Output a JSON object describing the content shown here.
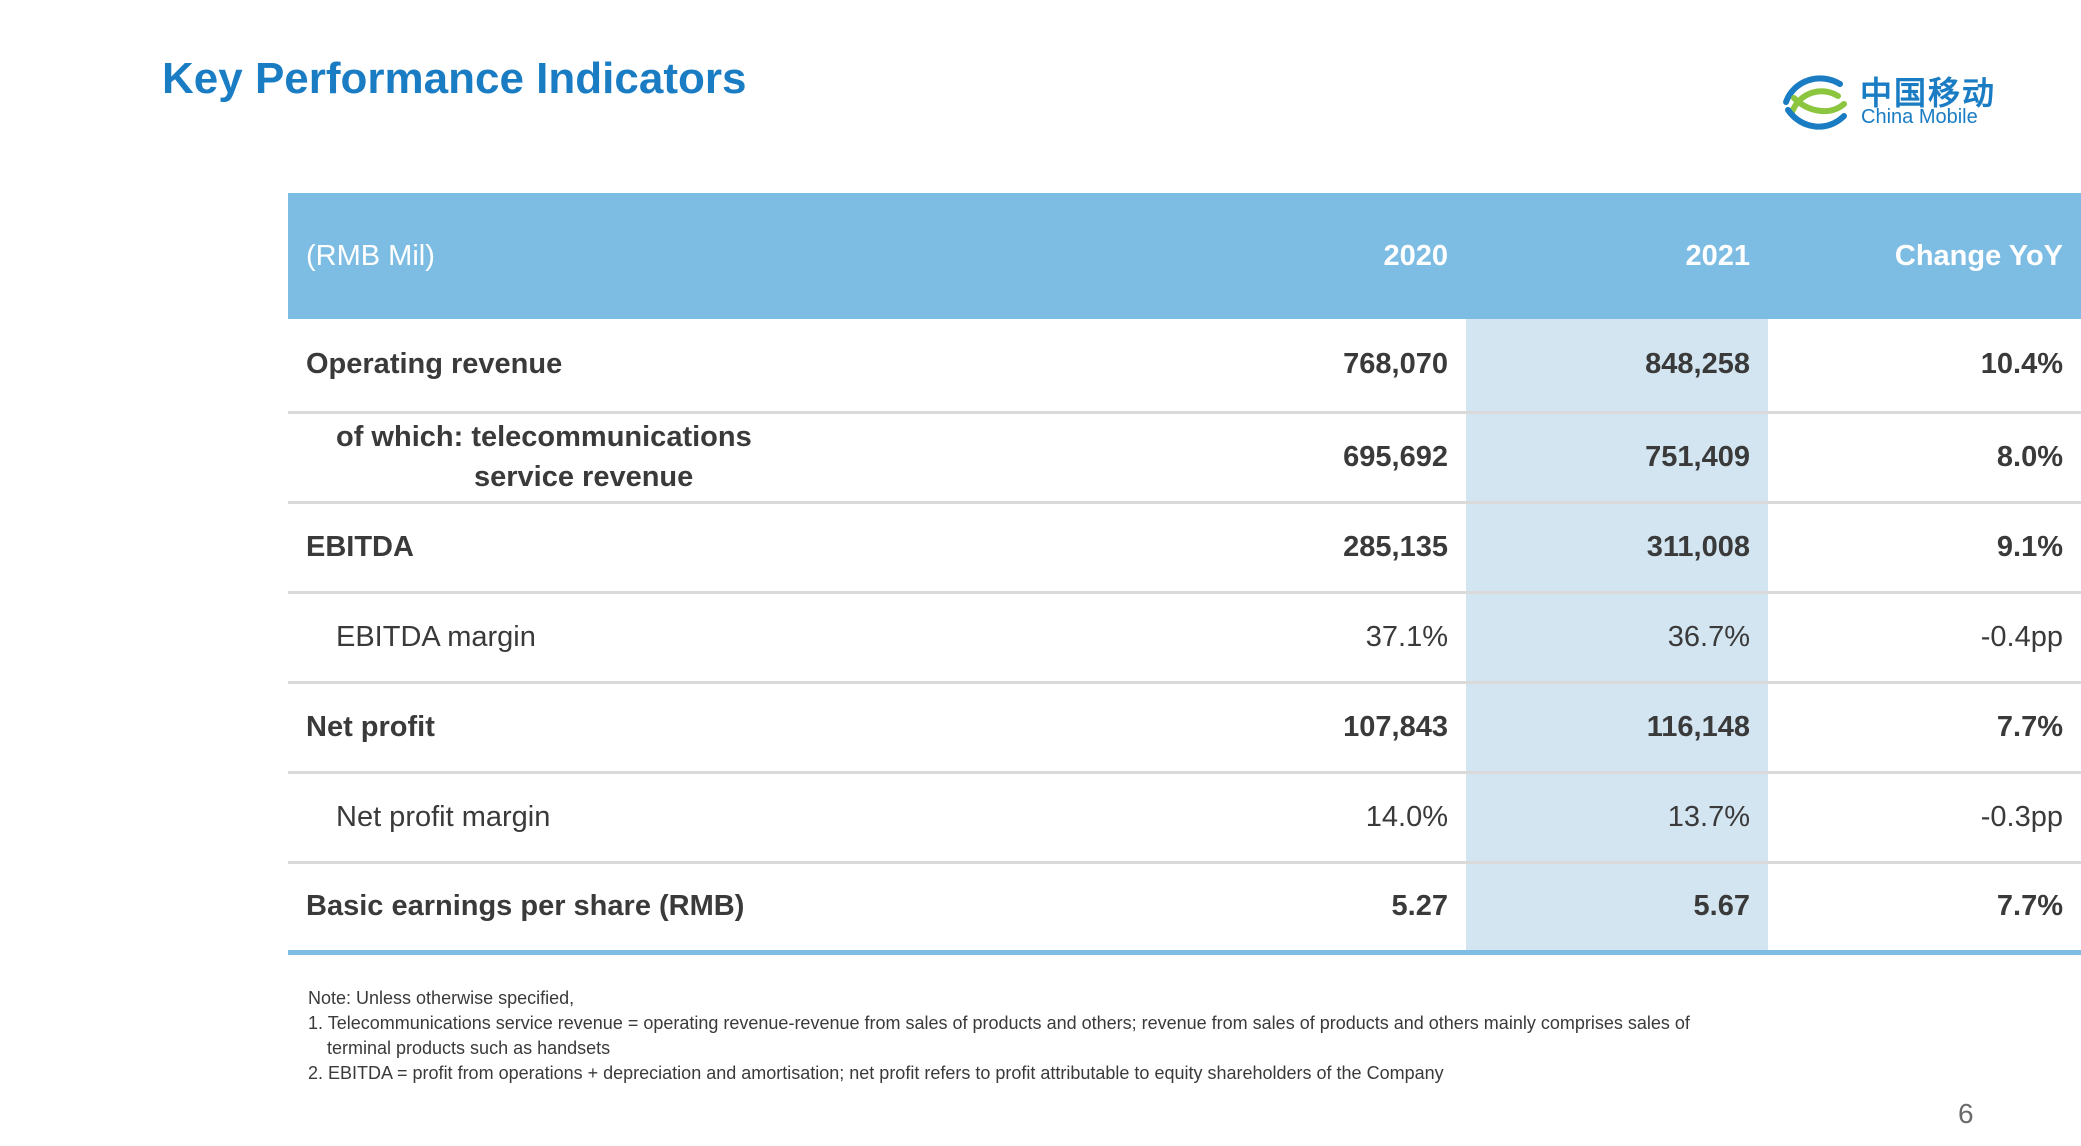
{
  "slide": {
    "title": "Key Performance Indicators",
    "page_number": "6"
  },
  "logo": {
    "chinese": "中国移动",
    "english": "China Mobile"
  },
  "table": {
    "headers": [
      "(RMB Mil)",
      "2020",
      "2021",
      "Change YoY"
    ],
    "rows": [
      {
        "label": "Operating revenue",
        "v2020": "768,070",
        "v2021": "848,258",
        "change": "10.4%"
      },
      {
        "label_line1": "of which: telecommunications",
        "label_line2": "service revenue",
        "v2020": "695,692",
        "v2021": "751,409",
        "change": "8.0%"
      },
      {
        "label": "EBITDA",
        "v2020": "285,135",
        "v2021": "311,008",
        "change": "9.1%"
      },
      {
        "label": "EBITDA margin",
        "v2020": "37.1%",
        "v2021": "36.7%",
        "change": "-0.4pp"
      },
      {
        "label": "Net profit",
        "v2020": "107,843",
        "v2021": "116,148",
        "change": "7.7%"
      },
      {
        "label": "Net profit margin",
        "v2020": "14.0%",
        "v2021": "13.7%",
        "change": "-0.3pp"
      },
      {
        "label": "Basic earnings per share (RMB)",
        "v2020": "5.27",
        "v2021": "5.67",
        "change": "7.7%"
      }
    ]
  },
  "notes": {
    "intro": "Note: Unless otherwise specified,",
    "note1_line1": "1. Telecommunications service revenue = operating revenue-revenue from sales of products and others; revenue from sales of products and others mainly comprises sales of",
    "note1_line2": "terminal products such as handsets",
    "note2": "2. EBITDA = profit from operations + depreciation and amortisation; net profit refers to profit attributable to equity shareholders of the Company"
  },
  "colors": {
    "title_blue": "#1a7dc4",
    "header_blue": "#7ebde3",
    "highlight_column": "#d3e5f1",
    "logo_green": "#8cc63f"
  }
}
